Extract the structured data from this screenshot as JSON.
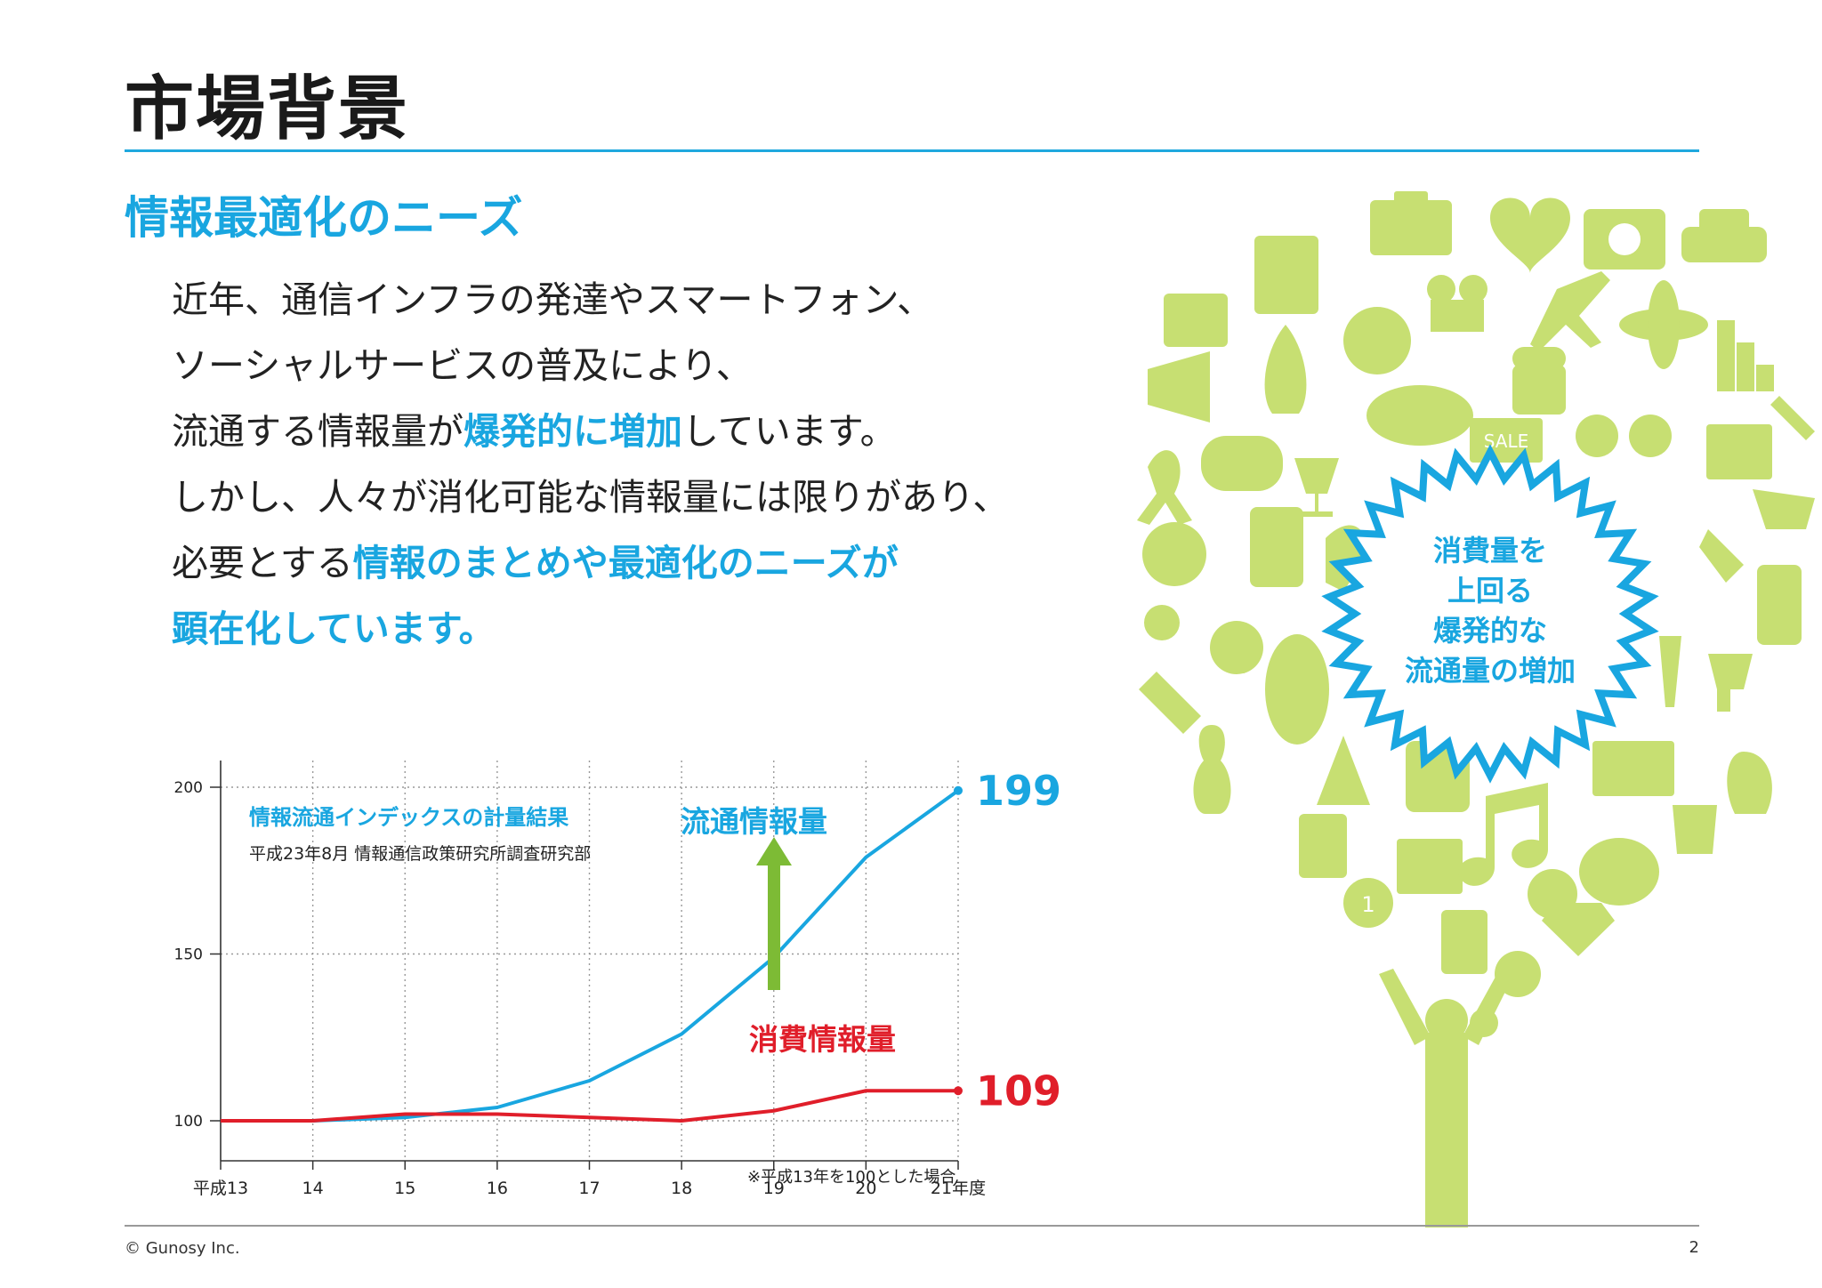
{
  "slide": {
    "title": "市場背景",
    "section_title": "情報最適化のニーズ",
    "body": {
      "line1": "近年、通信インフラの発達やスマートフォン、",
      "line2": "ソーシャルサービスの普及により、",
      "line3_pre": "流通する情報量が",
      "line3_hl": "爆発的に増加",
      "line3_post": "しています。",
      "line4": "しかし、人々が消化可能な情報量には限りがあり、",
      "line5_pre": "必要とする",
      "line5_hl": "情報のまとめや最適化のニーズが",
      "line6_hl": "顕在化しています。"
    }
  },
  "illustration": {
    "burst_lines": [
      "消費量を",
      "上回る",
      "爆発的な",
      "流通量の増加"
    ],
    "sale_label": "SALE",
    "badge_number": "1",
    "colors": {
      "icon": "#c7df72",
      "burst": "#19a6e0",
      "burst_text": "#19a6e0"
    }
  },
  "chart_data": {
    "type": "line",
    "title": "情報流通インデックスの計量結果",
    "subtitle": "平成23年8月 情報通信政策研究所調査研究部",
    "categories": [
      "平成13",
      "14",
      "15",
      "16",
      "17",
      "18",
      "19",
      "20",
      "21年度"
    ],
    "series": [
      {
        "name": "流通情報量",
        "color": "#19a6e0",
        "values": [
          100,
          100,
          101,
          104,
          112,
          126,
          149,
          179,
          199
        ],
        "end_label": "199"
      },
      {
        "name": "消費情報量",
        "color": "#e01e2a",
        "values": [
          100,
          100,
          102,
          102,
          101,
          100,
          103,
          109,
          109
        ],
        "end_label": "109"
      }
    ],
    "yticks": [
      100,
      150,
      200
    ],
    "ylim": [
      88,
      208
    ],
    "note": "※平成13年を100とした場合",
    "arrow_color": "#7dbb35",
    "grid": true
  },
  "footer": {
    "copyright": "© Gunosy Inc.",
    "page_number": "2"
  }
}
